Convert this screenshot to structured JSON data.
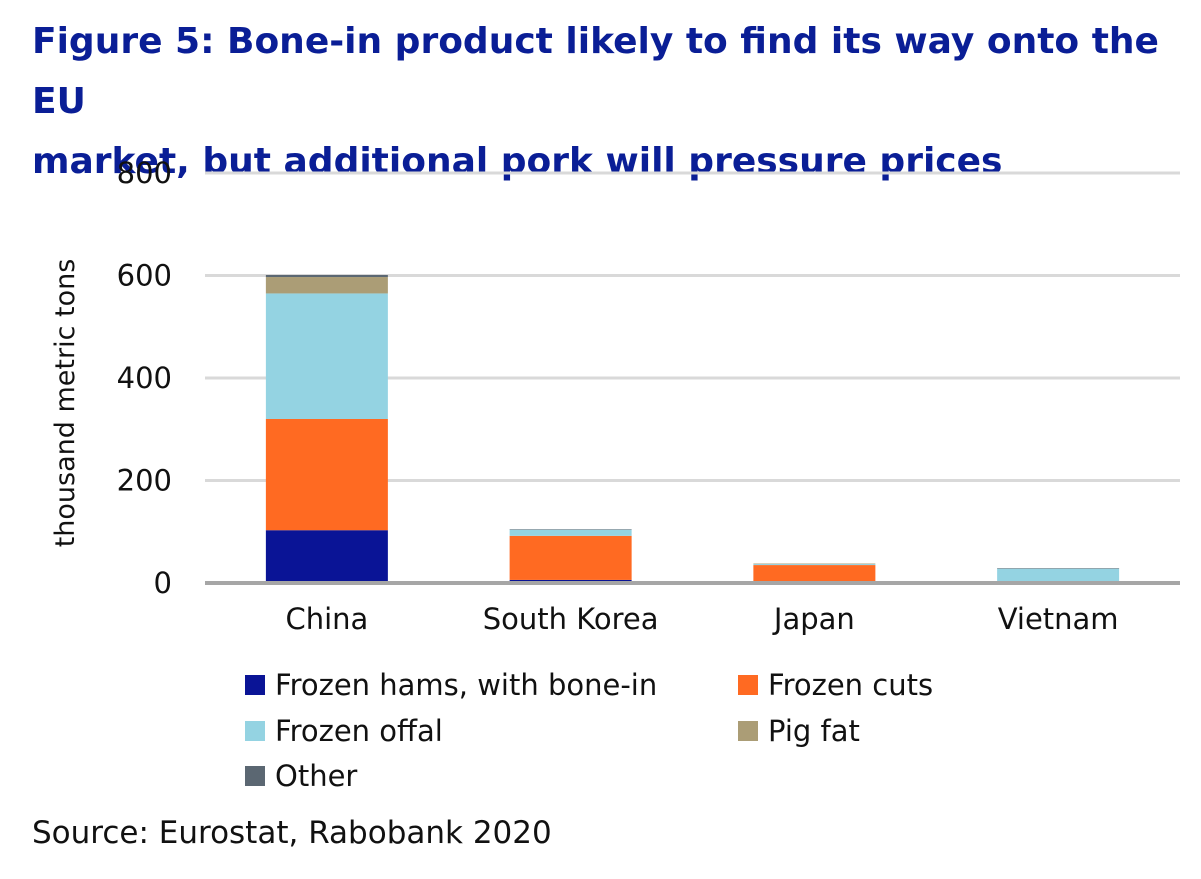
{
  "title_lines": [
    "Figure 5: Bone-in product likely to find its way onto the EU",
    "market, but additional pork will pressure prices"
  ],
  "source": "Source: Eurostat, Rabobank 2020",
  "chart_data": {
    "type": "bar",
    "stacked": true,
    "categories": [
      "China",
      "South Korea",
      "Japan",
      "Vietnam"
    ],
    "series": [
      {
        "name": "Frozen hams, with bone-in",
        "color": "#0a1496",
        "values": [
          103,
          6,
          0,
          0
        ]
      },
      {
        "name": "Frozen cuts",
        "color": "#ff6a22",
        "values": [
          217,
          86,
          35,
          0
        ]
      },
      {
        "name": "Frozen offal",
        "color": "#94d3e2",
        "values": [
          245,
          12,
          2,
          28
        ]
      },
      {
        "name": "Pig fat",
        "color": "#ab9d76",
        "values": [
          32,
          0,
          1,
          0
        ]
      },
      {
        "name": "Other",
        "color": "#5b6772",
        "values": [
          4,
          1,
          0,
          1
        ]
      }
    ],
    "ylabel": "thousand metric tons",
    "ylim": [
      0,
      800
    ],
    "yticks": [
      0,
      200,
      400,
      600,
      800
    ],
    "grid": true,
    "legend_position": "bottom"
  }
}
